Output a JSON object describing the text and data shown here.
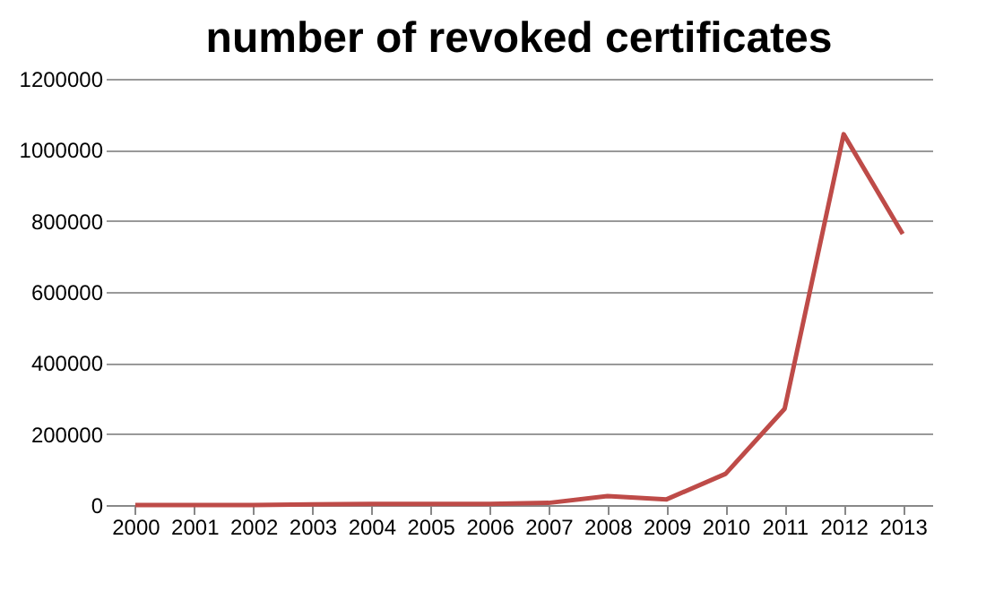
{
  "chart_data": {
    "type": "line",
    "title": "number of revoked certificates",
    "categories": [
      "2000",
      "2001",
      "2002",
      "2003",
      "2004",
      "2005",
      "2006",
      "2007",
      "2008",
      "2009",
      "2010",
      "2011",
      "2012",
      "2013"
    ],
    "series": [
      {
        "color": "#be4b48",
        "values": [
          0,
          0,
          0,
          2000,
          3000,
          3000,
          3000,
          6000,
          25000,
          16000,
          88000,
          271000,
          1044000,
          763000
        ]
      }
    ],
    "ylim": [
      0,
      1200000
    ],
    "yticks": [
      0,
      200000,
      400000,
      600000,
      800000,
      1000000,
      1200000
    ],
    "grid": "y",
    "marker": "none",
    "line_style": "solid"
  }
}
